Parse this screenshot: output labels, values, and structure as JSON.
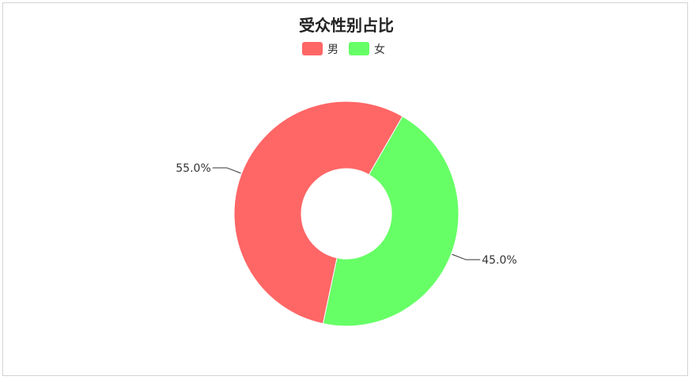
{
  "chart_data": {
    "type": "pie",
    "variant": "donut",
    "title": "受众性别占比",
    "legend_position": "top-center",
    "series": [
      {
        "name": "男",
        "value": 55.0,
        "label": "55.0%",
        "color": "#ff6666"
      },
      {
        "name": "女",
        "value": 45.0,
        "label": "45.0%",
        "color": "#66ff66"
      }
    ]
  }
}
